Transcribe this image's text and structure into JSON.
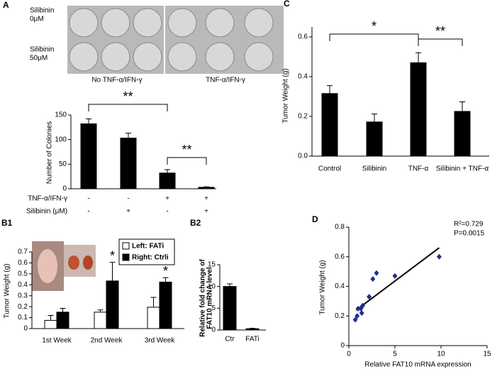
{
  "chart_data": [
    {
      "panel": "A",
      "type": "bar",
      "ylabel": "Number of Colonies",
      "photo_rows": [
        [
          "Silibinin",
          "0μM"
        ],
        [
          "Silibinin",
          "50μM"
        ]
      ],
      "photo_columns": [
        "No TNF-α/IFN-γ",
        "TNF-α/IFN-γ"
      ],
      "values": [
        132,
        103,
        32,
        3
      ],
      "errors": [
        10,
        10,
        7,
        1
      ],
      "color": "#000000",
      "ylim": [
        0,
        150
      ],
      "yticks": [
        0,
        50,
        100,
        150
      ],
      "treatment": [
        {
          "label": "TNF-α/IFN-γ",
          "marks": [
            "-",
            "-",
            "+",
            "+"
          ]
        },
        {
          "label": "Silibinin (μM)",
          "marks": [
            "-",
            "+",
            "-",
            "+"
          ]
        }
      ],
      "annotations": [
        "**",
        "**"
      ]
    },
    {
      "panel": "B1",
      "type": "bar",
      "ylabel": "Tumor  Weight (g)",
      "categories": [
        "1st Week",
        "2nd Week",
        "3rd Week"
      ],
      "series": [
        {
          "name": "Left: FATi",
          "color": "#ffffff",
          "values": [
            0.075,
            0.15,
            0.195
          ],
          "errors": [
            0.045,
            0.02,
            0.09
          ]
        },
        {
          "name": "Right: Ctrli",
          "color": "#000000",
          "values": [
            0.15,
            0.435,
            0.425
          ],
          "errors": [
            0.035,
            0.17,
            0.04
          ]
        }
      ],
      "ylim": [
        0,
        0.7
      ],
      "yticks": [
        0,
        0.1,
        0.2,
        0.3,
        0.4,
        0.5,
        0.6,
        0.7
      ],
      "annotations": [
        "*",
        "*"
      ]
    },
    {
      "panel": "B2",
      "type": "bar",
      "ylabel": [
        "Relative fold change of",
        "FAT10 mRNA level"
      ],
      "categories": [
        "Ctr",
        "FATi"
      ],
      "values": [
        10,
        0.3
      ],
      "errors": [
        0.6,
        0.1
      ],
      "color": "#000000",
      "ylim": [
        0,
        15
      ],
      "yticks": [
        0,
        5,
        10,
        15
      ]
    },
    {
      "panel": "C",
      "type": "bar",
      "ylabel": "Tumor Weight (g)",
      "categories": [
        "Control",
        "Silibinin",
        "TNF-α",
        "Silibinin + TNF-α"
      ],
      "values": [
        0.315,
        0.172,
        0.47,
        0.225
      ],
      "errors": [
        0.04,
        0.04,
        0.05,
        0.048
      ],
      "color": "#000000",
      "ylim": [
        0,
        0.65
      ],
      "yticks": [
        {
          "value": 0,
          "label": "0.0"
        },
        0.2,
        0.4,
        0.6
      ],
      "annotations": [
        "*",
        "**"
      ]
    },
    {
      "panel": "D",
      "type": "scatter",
      "xlabel": "Relative FAT10 mRNA expression",
      "ylabel": "Tumor  Weight (g)",
      "x": [
        0.7,
        0.9,
        1.0,
        1.3,
        1.4,
        1.5,
        2.2,
        2.6,
        3.0,
        5.0,
        9.8
      ],
      "y": [
        0.175,
        0.2,
        0.25,
        0.25,
        0.22,
        0.27,
        0.33,
        0.45,
        0.49,
        0.47,
        0.6
      ],
      "color": "#1f2f8f",
      "fit": {
        "x": [
          0.8,
          9.8
        ],
        "y": [
          0.24,
          0.66
        ]
      },
      "xlim": [
        0,
        15
      ],
      "xticks": [
        0,
        5,
        10,
        15
      ],
      "ylim": [
        0,
        0.8
      ],
      "yticks": [
        0,
        0.2,
        0.4,
        0.6,
        0.8
      ],
      "annotations": [
        "R²=0.729",
        "P=0.0015"
      ]
    }
  ]
}
